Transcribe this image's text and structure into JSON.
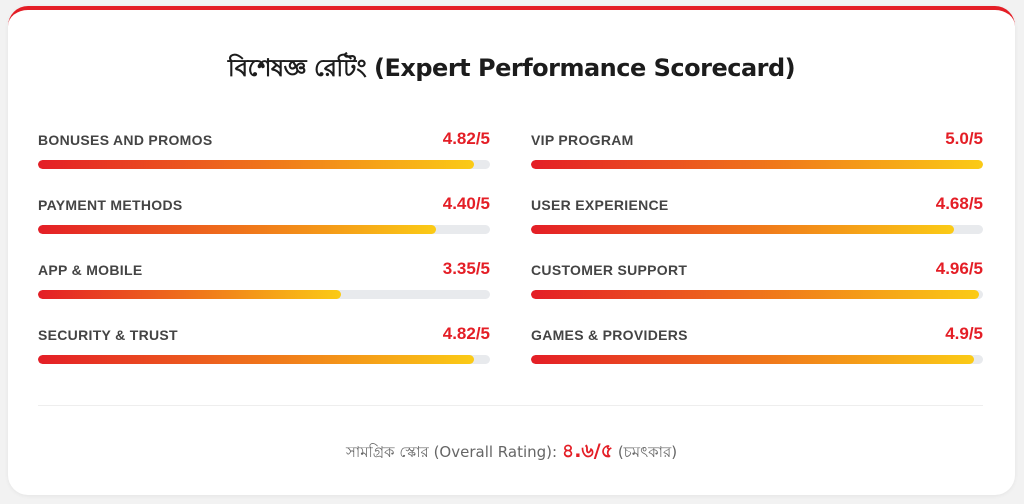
{
  "title": "বিশেষজ্ঞ রেটিং (Expert Performance Scorecard)",
  "colors": {
    "accent": "#e41e26",
    "bar_start": "#e41e26",
    "bar_end": "#fbcb16",
    "track": "#e8eaed"
  },
  "left": [
    {
      "label": "BONUSES AND PROMOS",
      "score": "4.82/5",
      "fraction": 0.964
    },
    {
      "label": "PAYMENT METHODS",
      "score": "4.40/5",
      "fraction": 0.88
    },
    {
      "label": "APP & MOBILE",
      "score": "3.35/5",
      "fraction": 0.67
    },
    {
      "label": "SECURITY & TRUST",
      "score": "4.82/5",
      "fraction": 0.964
    }
  ],
  "right": [
    {
      "label": "VIP PROGRAM",
      "score": "5.0/5",
      "fraction": 1.0
    },
    {
      "label": "USER EXPERIENCE",
      "score": "4.68/5",
      "fraction": 0.936
    },
    {
      "label": "CUSTOMER SUPPORT",
      "score": "4.96/5",
      "fraction": 0.992
    },
    {
      "label": "GAMES & PROVIDERS",
      "score": "4.9/5",
      "fraction": 0.98
    }
  ],
  "footer": {
    "label": "সামগ্রিক স্কোর (Overall Rating):",
    "score": "৪.৬/৫",
    "verdict": "(চমৎকার)"
  }
}
